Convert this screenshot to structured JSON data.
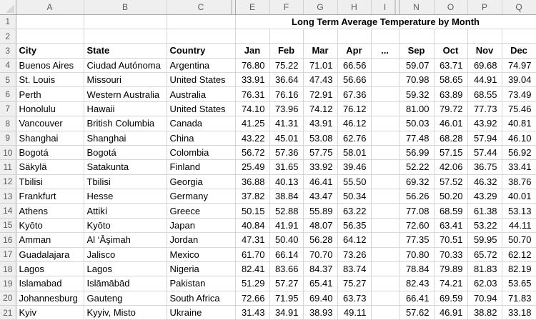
{
  "sheet": {
    "title": "Long Term Average Temperature by Month",
    "column_letters": [
      "A",
      "B",
      "C",
      "E",
      "F",
      "G",
      "H",
      "I",
      "N",
      "O",
      "P",
      "Q"
    ],
    "row_numbers": [
      "1",
      "2",
      "3",
      "4",
      "5",
      "6",
      "7",
      "8",
      "9",
      "10",
      "11",
      "12",
      "13",
      "14",
      "15",
      "16",
      "17",
      "18",
      "19",
      "20",
      "21"
    ],
    "header_row": {
      "city": "City",
      "state": "State",
      "country": "Country",
      "months": [
        "Jan",
        "Feb",
        "Mar",
        "Apr",
        "...",
        "Sep",
        "Oct",
        "Nov",
        "Dec"
      ]
    },
    "rows": [
      {
        "city": "Buenos Aires",
        "state": "Ciudad Autónoma",
        "country": "Argentina",
        "values": [
          "76.80",
          "75.22",
          "71.01",
          "66.56",
          "59.07",
          "63.71",
          "69.68",
          "74.97"
        ]
      },
      {
        "city": "St. Louis",
        "state": "Missouri",
        "country": "United States",
        "values": [
          "33.91",
          "36.64",
          "47.43",
          "56.66",
          "70.98",
          "58.65",
          "44.91",
          "39.04"
        ]
      },
      {
        "city": "Perth",
        "state": "Western Australia",
        "country": "Australia",
        "values": [
          "76.31",
          "76.16",
          "72.91",
          "67.36",
          "59.32",
          "63.89",
          "68.55",
          "73.49"
        ]
      },
      {
        "city": "Honolulu",
        "state": "Hawaii",
        "country": "United States",
        "values": [
          "74.10",
          "73.96",
          "74.12",
          "76.12",
          "81.00",
          "79.72",
          "77.73",
          "75.46"
        ]
      },
      {
        "city": "Vancouver",
        "state": "British Columbia",
        "country": "Canada",
        "values": [
          "41.25",
          "41.31",
          "43.91",
          "46.12",
          "50.03",
          "46.01",
          "43.92",
          "40.81"
        ]
      },
      {
        "city": "Shanghai",
        "state": "Shanghai",
        "country": "China",
        "values": [
          "43.22",
          "45.01",
          "53.08",
          "62.76",
          "77.48",
          "68.28",
          "57.94",
          "46.10"
        ]
      },
      {
        "city": "Bogotá",
        "state": "Bogotá",
        "country": "Colombia",
        "values": [
          "56.72",
          "57.36",
          "57.75",
          "58.01",
          "56.99",
          "57.15",
          "57.44",
          "56.92"
        ]
      },
      {
        "city": "Säkylä",
        "state": "Satakunta",
        "country": "Finland",
        "values": [
          "25.49",
          "31.65",
          "33.92",
          "39.46",
          "52.22",
          "42.06",
          "36.75",
          "33.41"
        ]
      },
      {
        "city": "Tbilisi",
        "state": "Tbilisi",
        "country": "Georgia",
        "values": [
          "36.88",
          "40.13",
          "46.41",
          "55.50",
          "69.32",
          "57.52",
          "46.32",
          "38.76"
        ]
      },
      {
        "city": "Frankfurt",
        "state": "Hesse",
        "country": "Germany",
        "values": [
          "37.82",
          "38.84",
          "43.47",
          "50.34",
          "56.26",
          "50.20",
          "43.29",
          "40.01"
        ]
      },
      {
        "city": "Athens",
        "state": "Attikí",
        "country": "Greece",
        "values": [
          "50.15",
          "52.88",
          "55.89",
          "63.22",
          "77.08",
          "68.59",
          "61.38",
          "53.13"
        ]
      },
      {
        "city": "Kyōto",
        "state": "Kyōto",
        "country": "Japan",
        "values": [
          "40.84",
          "41.91",
          "48.07",
          "56.35",
          "72.60",
          "63.41",
          "53.22",
          "44.11"
        ]
      },
      {
        "city": "Amman",
        "state": "Al ‘Āşimah",
        "country": "Jordan",
        "values": [
          "47.31",
          "50.40",
          "56.28",
          "64.12",
          "77.35",
          "70.51",
          "59.95",
          "50.70"
        ]
      },
      {
        "city": "Guadalajara",
        "state": "Jalisco",
        "country": "Mexico",
        "values": [
          "61.70",
          "66.14",
          "70.70",
          "73.26",
          "70.80",
          "70.33",
          "65.72",
          "62.12"
        ]
      },
      {
        "city": "Lagos",
        "state": "Lagos",
        "country": "Nigeria",
        "values": [
          "82.41",
          "83.66",
          "84.37",
          "83.74",
          "78.84",
          "79.89",
          "81.83",
          "82.19"
        ]
      },
      {
        "city": "Islamabad",
        "state": "Islāmābād",
        "country": "Pakistan",
        "values": [
          "51.29",
          "57.27",
          "65.41",
          "75.27",
          "82.43",
          "74.21",
          "62.03",
          "53.65"
        ]
      },
      {
        "city": "Johannesburg",
        "state": "Gauteng",
        "country": "South Africa",
        "values": [
          "72.66",
          "71.95",
          "69.40",
          "63.73",
          "66.41",
          "69.59",
          "70.94",
          "71.83"
        ]
      },
      {
        "city": "Kyiv",
        "state": "Kyyiv, Misto",
        "country": "Ukraine",
        "values": [
          "31.43",
          "34.91",
          "38.93",
          "49.11",
          "57.62",
          "46.91",
          "38.82",
          "33.18"
        ]
      }
    ]
  },
  "colors": {
    "header_bg": "#EFEFEF",
    "grid_line": "#D6D6D6",
    "header_border": "#A6A6A6",
    "header_text": "#5C5C5C",
    "cell_text": "#000000"
  }
}
